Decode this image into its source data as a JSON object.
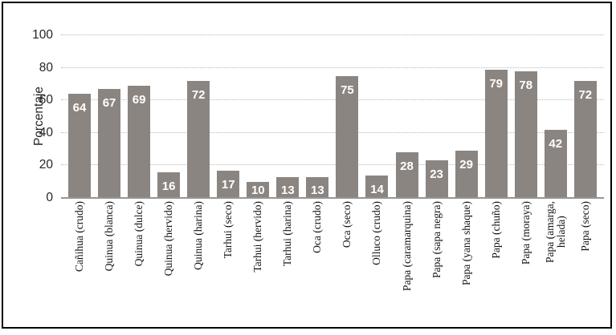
{
  "figure": {
    "border_color": "#000000",
    "background_color": "#ffffff"
  },
  "chart_data": {
    "type": "bar",
    "title": "",
    "xlabel": "",
    "ylabel": "Porcentaje",
    "ylim": [
      0,
      100
    ],
    "yticks": [
      0,
      20,
      40,
      60,
      80,
      100
    ],
    "grid": "horizontal dotted gridlines at each y tick",
    "legend": "none",
    "bar_color": "#8b8581",
    "gridline_color": "#b4bab4",
    "axis_line_color": "#969696",
    "value_label_color": "#ffffff",
    "categories": [
      "Cañihua (crudo)",
      "Quinua (blanca)",
      "Quinua (dulce)",
      "Quinua (hervido)",
      "Quinua (harina)",
      "Tarhui (seco)",
      "Tarhui (hervido)",
      "Tarhui (harina)",
      "Oca (crudo)",
      "Oca (seco)",
      "Olluco (crudo)",
      "Papa (caramarquina)",
      "Papa (sapa negra)",
      "Papa (yana shaque)",
      "Papa (chuño)",
      "Papa (moraya)",
      "Papa (amarga,\nhelada)",
      "Papa (seco)"
    ],
    "values": [
      64,
      67,
      69,
      16,
      72,
      17,
      10,
      13,
      13,
      75,
      14,
      28,
      23,
      29,
      79,
      78,
      42,
      72
    ]
  }
}
